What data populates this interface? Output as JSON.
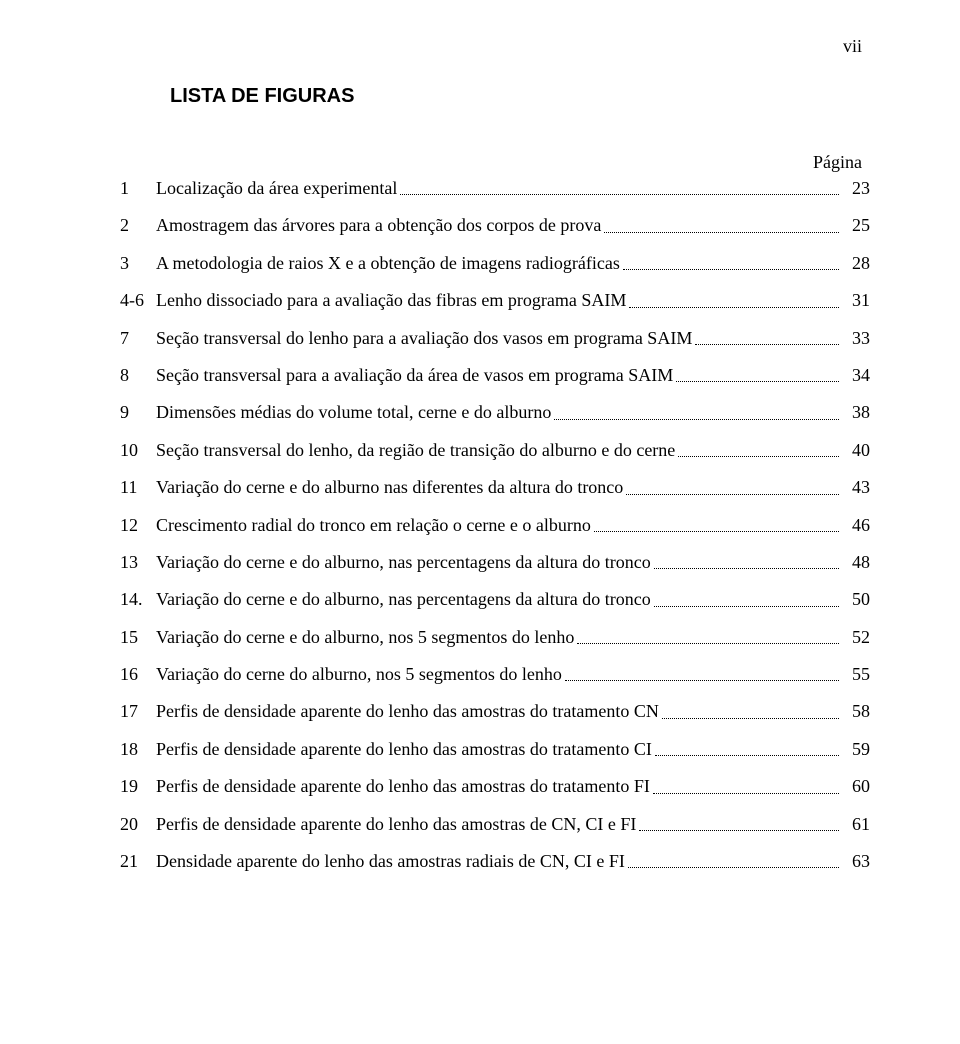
{
  "page_roman": "vii",
  "heading": "LISTA DE FIGURAS",
  "pagina_label": "Página",
  "entries": [
    {
      "n": "1",
      "text": "Localização da área experimental",
      "page": "23"
    },
    {
      "n": "2",
      "text": "Amostragem das árvores para a obtenção dos corpos de prova",
      "page": "25"
    },
    {
      "n": "3",
      "text": "A metodologia de raios X e a obtenção de imagens radiográficas",
      "page": "28"
    },
    {
      "n": "4-6",
      "text": "Lenho dissociado para a avaliação das fibras em programa SAIM",
      "page": "31"
    },
    {
      "n": "7",
      "text": "Seção transversal do lenho para a avaliação dos vasos em programa SAIM",
      "page": "33"
    },
    {
      "n": "8",
      "text": "Seção transversal para a avaliação da área de vasos em programa SAIM",
      "page": "34"
    },
    {
      "n": "9",
      "text": "Dimensões médias do volume total, cerne e do alburno",
      "page": "38"
    },
    {
      "n": "10",
      "text": "Seção transversal do lenho, da região de transição do alburno e do cerne",
      "page": "40"
    },
    {
      "n": "11",
      "text": "Variação do cerne e do alburno nas diferentes da altura do tronco",
      "page": "43"
    },
    {
      "n": "12",
      "text": "Crescimento radial do tronco em relação o cerne e o alburno",
      "page": "46"
    },
    {
      "n": "13",
      "text": "Variação do cerne e do alburno, nas percentagens da altura do tronco",
      "page": "48"
    },
    {
      "n": "14.",
      "text": "Variação do cerne e do alburno, nas percentagens da altura do tronco",
      "page": "50"
    },
    {
      "n": "15",
      "text": "Variação do cerne e do alburno, nos 5 segmentos do lenho",
      "page": "52"
    },
    {
      "n": "16",
      "text": "Variação do cerne  do alburno, nos 5 segmentos do lenho ",
      "page": "55"
    },
    {
      "n": "17",
      "text": " Perfis de densidade aparente do lenho das amostras do tratamento CN",
      "page": "58"
    },
    {
      "n": "18",
      "text": " Perfis de densidade aparente do lenho das amostras do tratamento CI",
      "page": "59"
    },
    {
      "n": "19",
      "text": " Perfis de densidade aparente do lenho das amostras do tratamento FI",
      "page": "60"
    },
    {
      "n": "20",
      "text": " Perfis de densidade aparente do lenho das amostras de CN, CI e FI",
      "page": "61"
    },
    {
      "n": "21",
      "text": " Densidade aparente do lenho das amostras radiais de CN, CI e FI",
      "page": "63"
    }
  ]
}
